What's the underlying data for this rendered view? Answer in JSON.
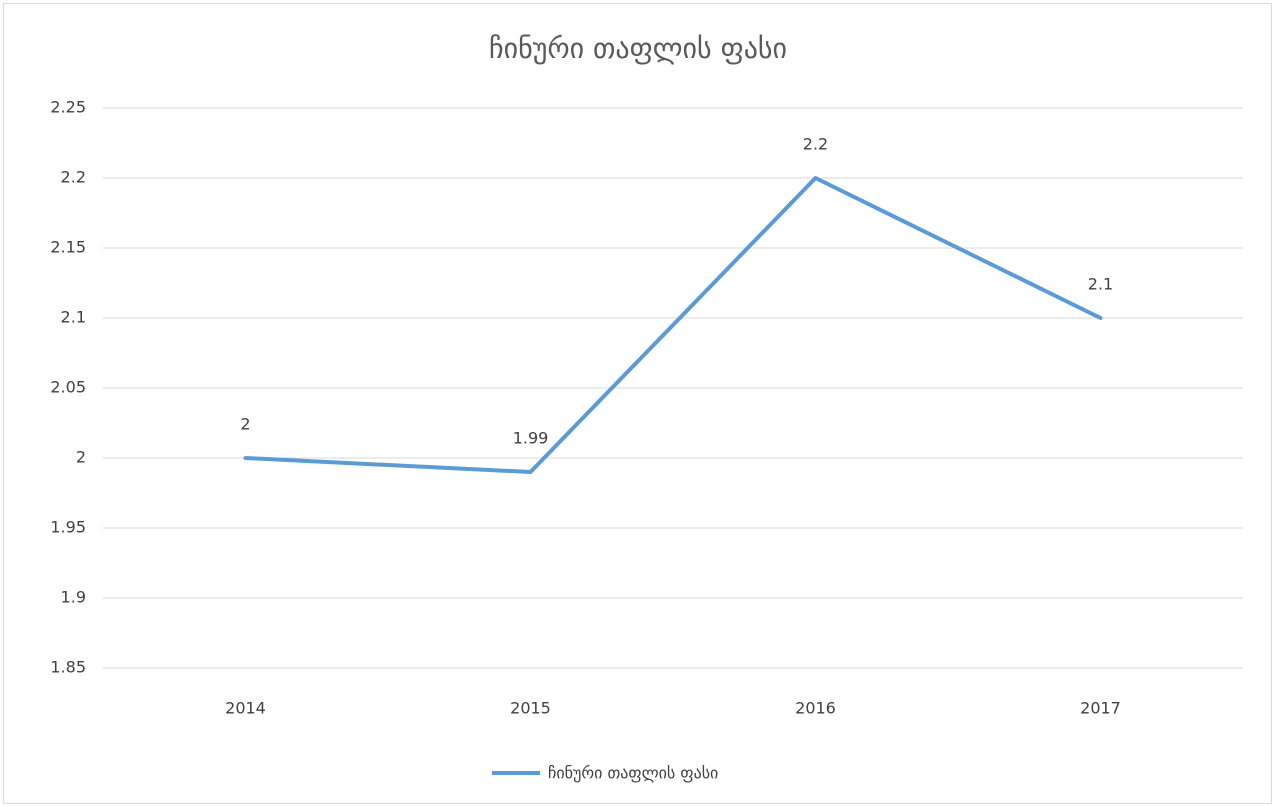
{
  "chart_data": {
    "type": "line",
    "title": "ჩინური თაფლის ფასი",
    "categories": [
      "2014",
      "2015",
      "2016",
      "2017"
    ],
    "series": [
      {
        "name": "ჩინური თაფლის ფასი",
        "color": "#5b9bd5",
        "values": [
          2,
          1.99,
          2.2,
          2.1
        ]
      }
    ],
    "ylim": [
      1.85,
      2.25
    ],
    "yticks": [
      1.85,
      1.9,
      1.95,
      2,
      2.05,
      2.1,
      2.15,
      2.2,
      2.25
    ],
    "grid": true,
    "legend": "bottom",
    "data_labels": true
  }
}
